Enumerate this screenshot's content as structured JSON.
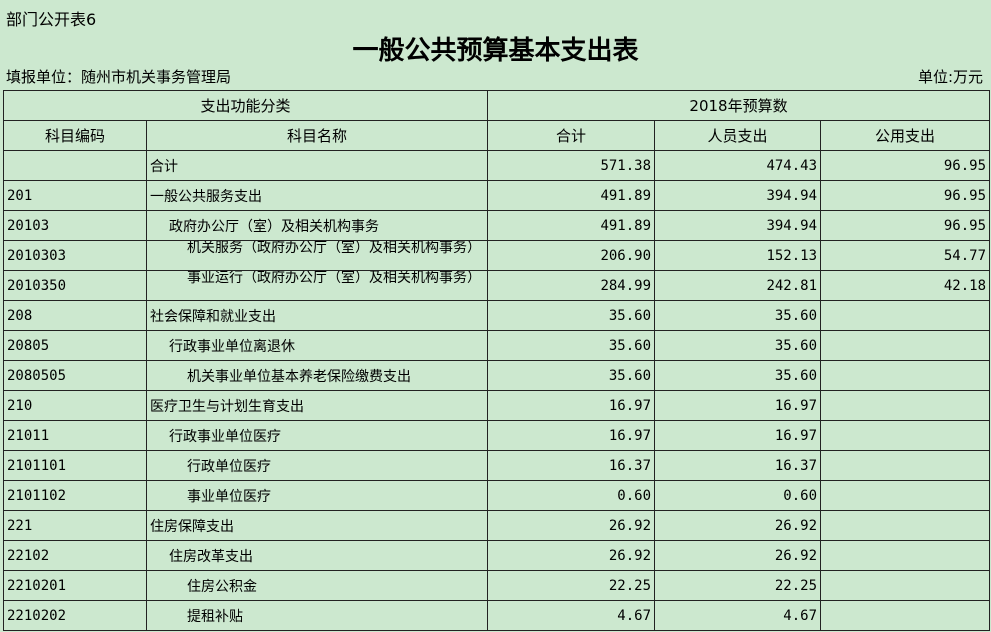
{
  "sheet_label": "部门公开表6",
  "title": "一般公共预算基本支出表",
  "unit_left": "填报单位：随州市机关事务管理局",
  "unit_right": "单位:万元",
  "header": {
    "group1": "支出功能分类",
    "group2": "2018年预算数",
    "code": "科目编码",
    "name": "科目名称",
    "total": "合计",
    "personnel": "人员支出",
    "public": "公用支出"
  },
  "rows": [
    {
      "code": "",
      "name": "合计",
      "indent": 0,
      "total": "571.38",
      "personnel": "474.43",
      "public": "96.95"
    },
    {
      "code": "201",
      "name": "一般公共服务支出",
      "indent": 0,
      "total": "491.89",
      "personnel": "394.94",
      "public": "96.95"
    },
    {
      "code": "20103",
      "name": "政府办公厅（室）及相关机构事务",
      "indent": 1,
      "total": "491.89",
      "personnel": "394.94",
      "public": "96.95"
    },
    {
      "code": "2010303",
      "name": "机关服务（政府办公厅（室）及相关机构事务）",
      "indent": 2,
      "total": "206.90",
      "personnel": "152.13",
      "public": "54.77"
    },
    {
      "code": "2010350",
      "name": "事业运行（政府办公厅（室）及相关机构事务）",
      "indent": 2,
      "total": "284.99",
      "personnel": "242.81",
      "public": "42.18"
    },
    {
      "code": "208",
      "name": "社会保障和就业支出",
      "indent": 0,
      "total": "35.60",
      "personnel": "35.60",
      "public": ""
    },
    {
      "code": "20805",
      "name": "行政事业单位离退休",
      "indent": 1,
      "total": "35.60",
      "personnel": "35.60",
      "public": ""
    },
    {
      "code": "2080505",
      "name": "机关事业单位基本养老保险缴费支出",
      "indent": 2,
      "total": "35.60",
      "personnel": "35.60",
      "public": ""
    },
    {
      "code": "210",
      "name": "医疗卫生与计划生育支出",
      "indent": 0,
      "total": "16.97",
      "personnel": "16.97",
      "public": ""
    },
    {
      "code": "21011",
      "name": "行政事业单位医疗",
      "indent": 1,
      "total": "16.97",
      "personnel": "16.97",
      "public": ""
    },
    {
      "code": "2101101",
      "name": "行政单位医疗",
      "indent": 2,
      "total": "16.37",
      "personnel": "16.37",
      "public": ""
    },
    {
      "code": "2101102",
      "name": "事业单位医疗",
      "indent": 2,
      "total": "0.60",
      "personnel": "0.60",
      "public": ""
    },
    {
      "code": "221",
      "name": "住房保障支出",
      "indent": 0,
      "total": "26.92",
      "personnel": "26.92",
      "public": ""
    },
    {
      "code": "22102",
      "name": "住房改革支出",
      "indent": 1,
      "total": "26.92",
      "personnel": "26.92",
      "public": ""
    },
    {
      "code": "2210201",
      "name": "住房公积金",
      "indent": 2,
      "total": "22.25",
      "personnel": "22.25",
      "public": ""
    },
    {
      "code": "2210202",
      "name": "提租补贴",
      "indent": 2,
      "total": "4.67",
      "personnel": "4.67",
      "public": ""
    }
  ]
}
